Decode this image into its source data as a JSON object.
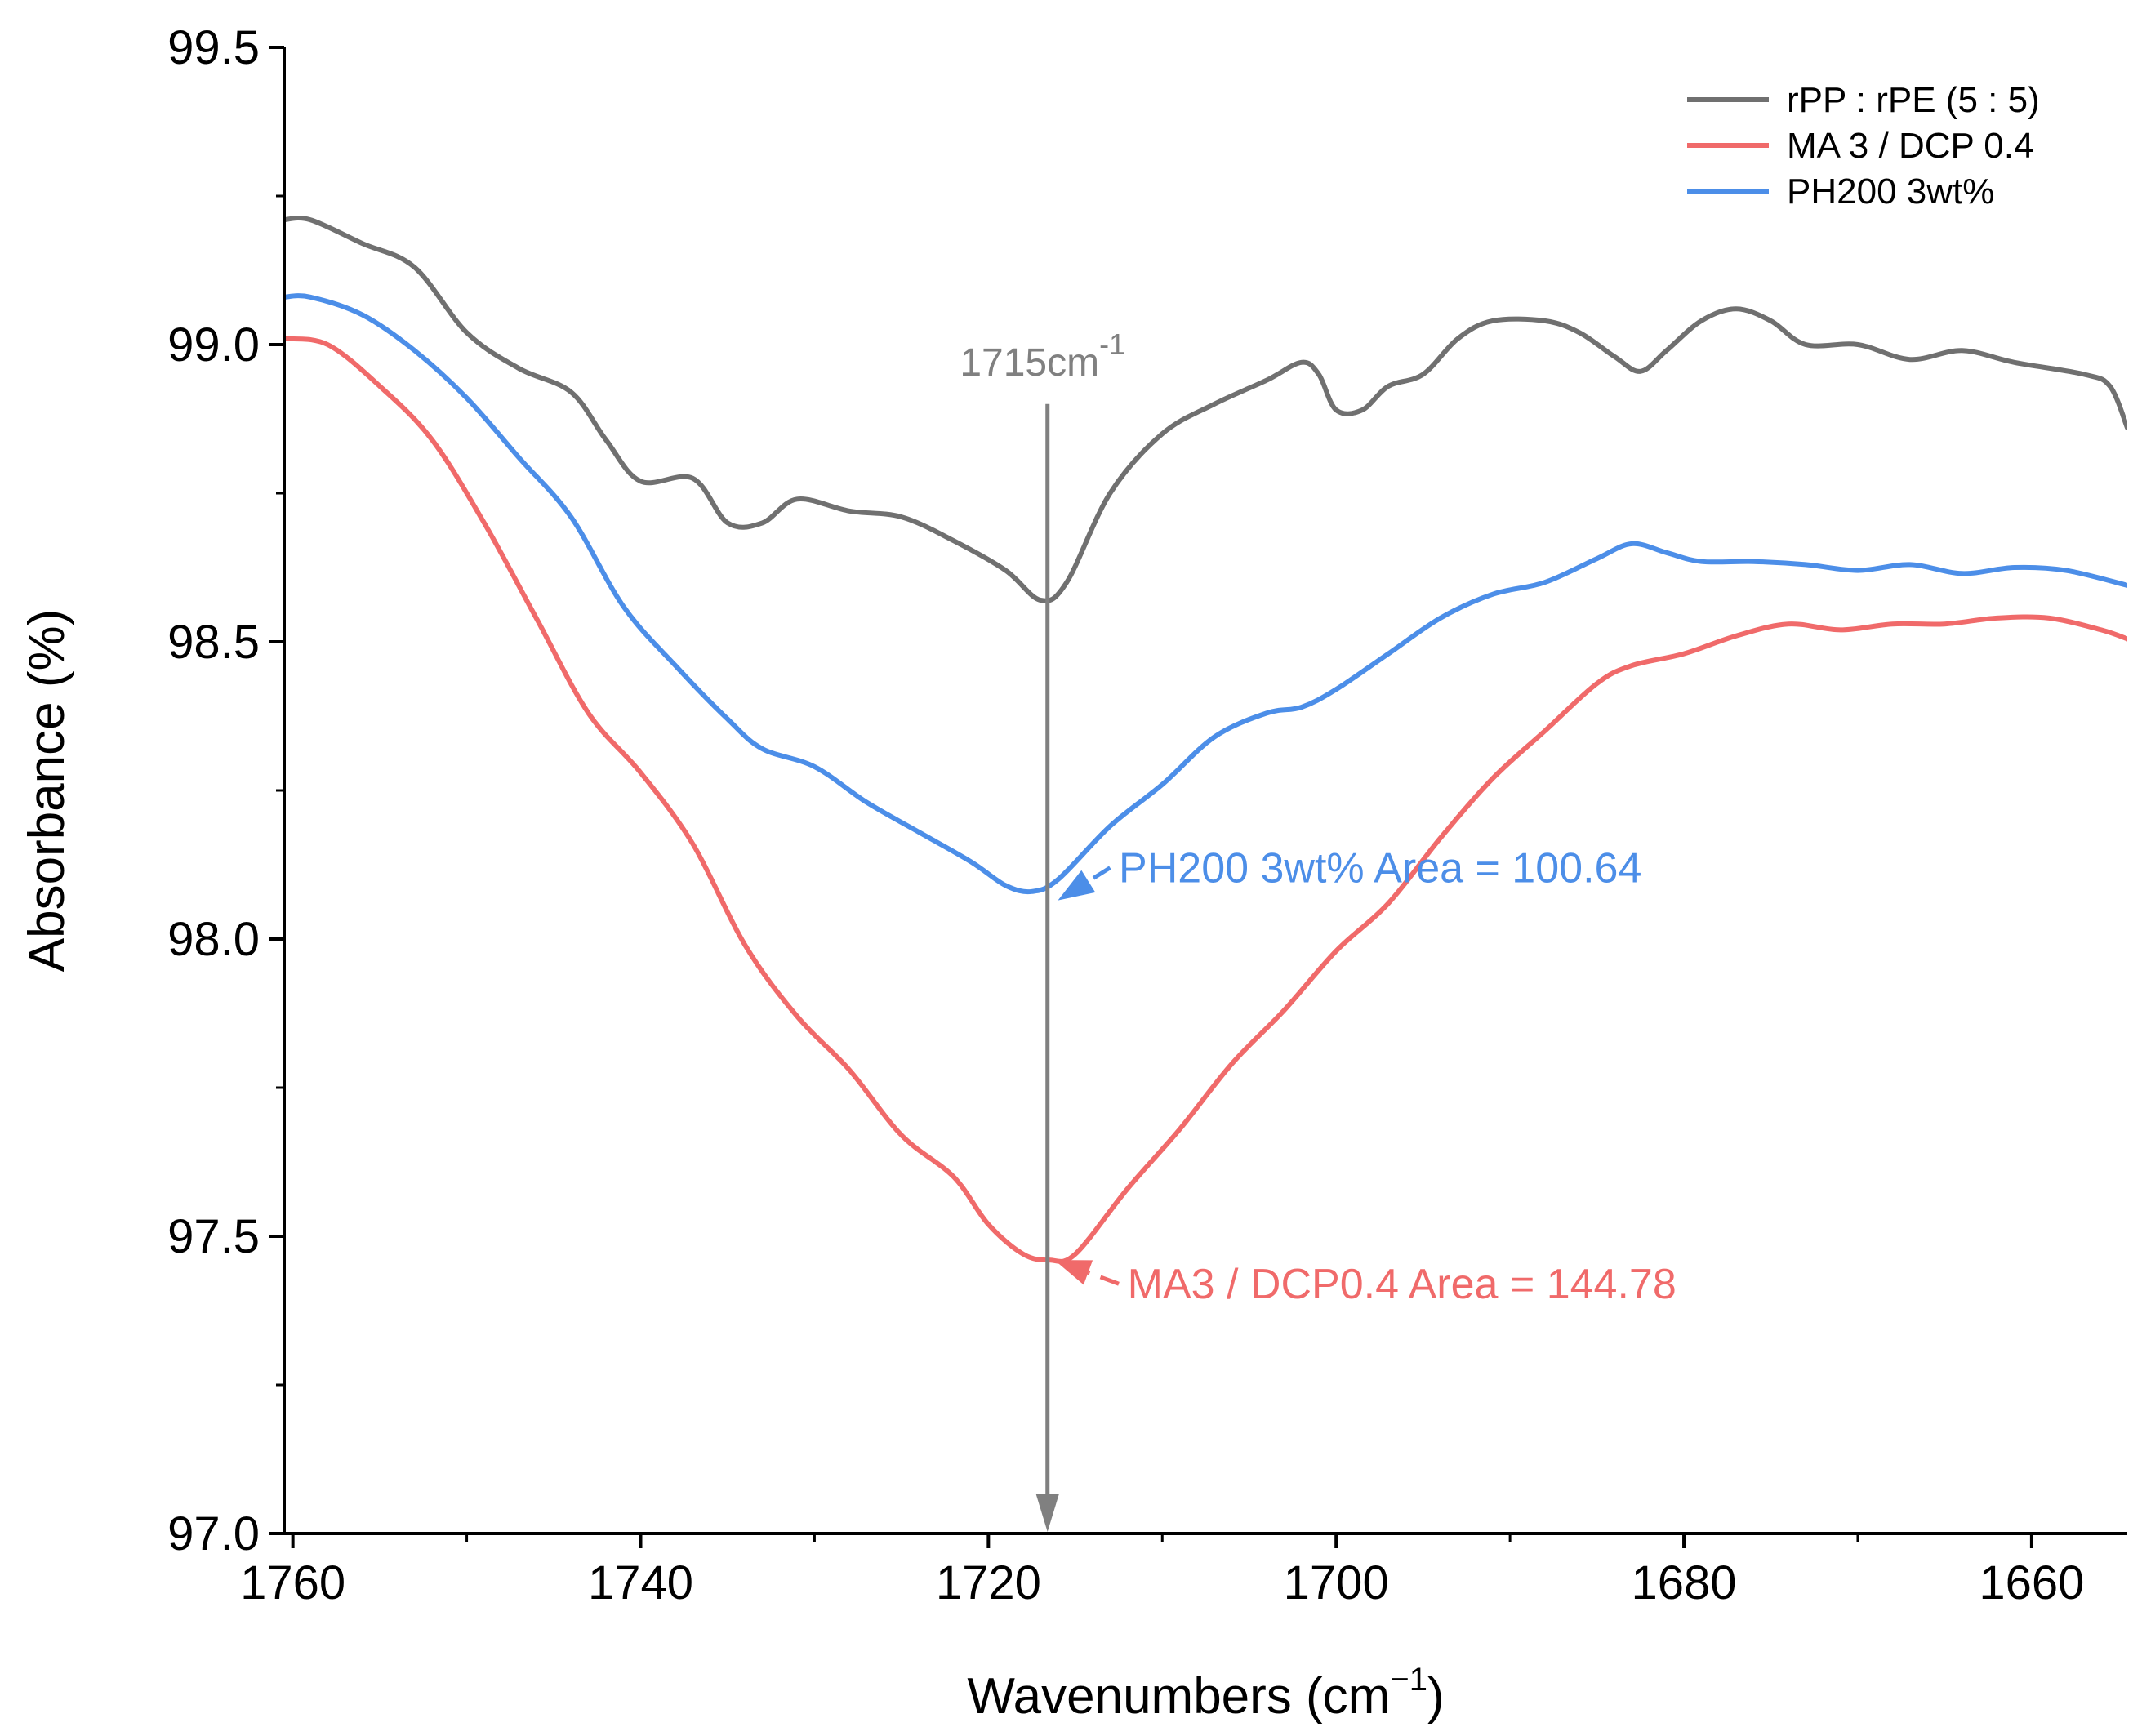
{
  "chart_data": {
    "type": "line",
    "title": "",
    "xlabel": "Wavenumbers (cm",
    "xlabel_sup": "−1",
    "xlabel_close": ")",
    "ylabel": "Absorbance (%)",
    "xlim": [
      1760.5,
      1654.5
    ],
    "ylim": [
      97.0,
      99.5
    ],
    "x_ticks": [
      1760,
      1740,
      1720,
      1700,
      1680,
      1660
    ],
    "x_tick_labels": [
      "1760",
      "1740",
      "1720",
      "1700",
      "1680",
      "1660"
    ],
    "y_ticks": [
      97.0,
      97.5,
      98.0,
      98.5,
      99.0,
      99.5
    ],
    "y_tick_labels": [
      "97.0",
      "97.5",
      "98.0",
      "98.5",
      "99.0",
      "99.5"
    ],
    "legend_position": "top-right",
    "series": [
      {
        "name": "rPP : rPE (5 : 5)",
        "color": "#707070",
        "points": [
          [
            1760.5,
            99.21
          ],
          [
            1759,
            99.21
          ],
          [
            1756,
            99.17
          ],
          [
            1753,
            99.13
          ],
          [
            1750,
            99.02
          ],
          [
            1747,
            98.96
          ],
          [
            1744,
            98.92
          ],
          [
            1742,
            98.84
          ],
          [
            1740,
            98.77
          ],
          [
            1737,
            98.775
          ],
          [
            1735,
            98.7
          ],
          [
            1733,
            98.7
          ],
          [
            1731,
            98.74
          ],
          [
            1728,
            98.72
          ],
          [
            1725,
            98.71
          ],
          [
            1722,
            98.67
          ],
          [
            1719,
            98.62
          ],
          [
            1717,
            98.57
          ],
          [
            1715.5,
            98.6
          ],
          [
            1713,
            98.75
          ],
          [
            1710,
            98.85
          ],
          [
            1707,
            98.9
          ],
          [
            1704,
            98.94
          ],
          [
            1702,
            98.97
          ],
          [
            1701,
            98.95
          ],
          [
            1700,
            98.89
          ],
          [
            1698.5,
            98.89
          ],
          [
            1697,
            98.93
          ],
          [
            1695,
            98.95
          ],
          [
            1693,
            99.01
          ],
          [
            1691,
            99.04
          ],
          [
            1688,
            99.04
          ],
          [
            1686,
            99.02
          ],
          [
            1684,
            98.98
          ],
          [
            1682.5,
            98.955
          ],
          [
            1681,
            98.99
          ],
          [
            1679,
            99.04
          ],
          [
            1677,
            99.06
          ],
          [
            1675,
            99.04
          ],
          [
            1673,
            99.0
          ],
          [
            1670,
            99.0
          ],
          [
            1667,
            98.975
          ],
          [
            1664,
            98.99
          ],
          [
            1661,
            98.97
          ],
          [
            1657,
            98.95
          ],
          [
            1655.5,
            98.93
          ],
          [
            1654.5,
            98.86
          ]
        ]
      },
      {
        "name": "MA 3 / DCP 0.4",
        "color": "#f06a6a",
        "points": [
          [
            1760.5,
            99.01
          ],
          [
            1758,
            99.0
          ],
          [
            1755,
            98.93
          ],
          [
            1752,
            98.84
          ],
          [
            1749,
            98.7
          ],
          [
            1746,
            98.54
          ],
          [
            1743,
            98.38
          ],
          [
            1740,
            98.28
          ],
          [
            1737,
            98.16
          ],
          [
            1734,
            97.99
          ],
          [
            1731,
            97.87
          ],
          [
            1728,
            97.78
          ],
          [
            1725,
            97.67
          ],
          [
            1722,
            97.6
          ],
          [
            1720,
            97.52
          ],
          [
            1718,
            97.47
          ],
          [
            1716.5,
            97.46
          ],
          [
            1715,
            97.47
          ],
          [
            1712,
            97.58
          ],
          [
            1709,
            97.68
          ],
          [
            1706,
            97.79
          ],
          [
            1703,
            97.88
          ],
          [
            1700,
            97.98
          ],
          [
            1697,
            98.06
          ],
          [
            1694,
            98.17
          ],
          [
            1691,
            98.27
          ],
          [
            1688,
            98.35
          ],
          [
            1685,
            98.43
          ],
          [
            1683,
            98.46
          ],
          [
            1680,
            98.48
          ],
          [
            1677,
            98.51
          ],
          [
            1674,
            98.53
          ],
          [
            1671,
            98.52
          ],
          [
            1668,
            98.53
          ],
          [
            1665,
            98.53
          ],
          [
            1662,
            98.54
          ],
          [
            1659,
            98.54
          ],
          [
            1656,
            98.52
          ],
          [
            1654.5,
            98.505
          ]
        ]
      },
      {
        "name": "PH200 3wt%",
        "color": "#4c8ee8",
        "points": [
          [
            1760.5,
            99.08
          ],
          [
            1759,
            99.08
          ],
          [
            1756,
            99.05
          ],
          [
            1753,
            98.99
          ],
          [
            1750,
            98.91
          ],
          [
            1747,
            98.81
          ],
          [
            1744,
            98.71
          ],
          [
            1741,
            98.56
          ],
          [
            1738,
            98.46
          ],
          [
            1735,
            98.37
          ],
          [
            1733,
            98.32
          ],
          [
            1730,
            98.29
          ],
          [
            1727,
            98.23
          ],
          [
            1724,
            98.18
          ],
          [
            1721,
            98.13
          ],
          [
            1719,
            98.09
          ],
          [
            1717.5,
            98.08
          ],
          [
            1716,
            98.1
          ],
          [
            1713,
            98.19
          ],
          [
            1710,
            98.26
          ],
          [
            1707,
            98.34
          ],
          [
            1704,
            98.38
          ],
          [
            1702,
            98.39
          ],
          [
            1700,
            98.42
          ],
          [
            1697,
            98.48
          ],
          [
            1694,
            98.54
          ],
          [
            1691,
            98.58
          ],
          [
            1688,
            98.6
          ],
          [
            1685,
            98.64
          ],
          [
            1683,
            98.665
          ],
          [
            1681,
            98.65
          ],
          [
            1679,
            98.635
          ],
          [
            1676,
            98.635
          ],
          [
            1673,
            98.63
          ],
          [
            1670,
            98.62
          ],
          [
            1667,
            98.63
          ],
          [
            1664,
            98.615
          ],
          [
            1661,
            98.625
          ],
          [
            1658,
            98.62
          ],
          [
            1654.5,
            98.595
          ]
        ]
      }
    ],
    "annotations": [
      {
        "text": "1715cm",
        "text_sup": "-1",
        "color": "#808080",
        "x": 1716.6,
        "line_from_y": 98.9,
        "line_to_y": 97.0
      },
      {
        "text": "PH200 3wt% Area = 100.64",
        "color": "#4c8ee8",
        "text_x": 1712.5,
        "text_y": 98.12,
        "arrow_from": [
          1713.0,
          98.12
        ],
        "arrow_to": [
          1716.0,
          98.065
        ]
      },
      {
        "text": "MA3 / DCP0.4 Area = 144.78",
        "color": "#f06a6a",
        "text_x": 1712.0,
        "text_y": 97.42,
        "arrow_from": [
          1712.5,
          97.42
        ],
        "arrow_to": [
          1716.2,
          97.46
        ]
      }
    ]
  }
}
